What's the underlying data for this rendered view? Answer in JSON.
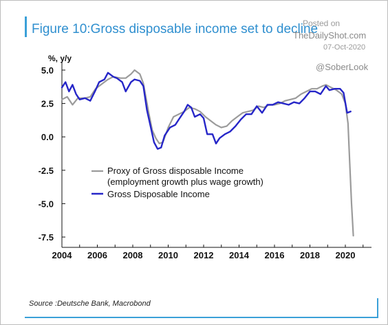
{
  "title": "Figure 10:Gross disposable income set to decline",
  "watermark": {
    "posted": "Posted on",
    "site": "TheDailyShot.com",
    "date": "07-Oct-2020",
    "handle": "@SoberLook"
  },
  "source": "Source :Deutsche Bank, Macrobond",
  "colors": {
    "accent": "#3aa0d8",
    "proxy_series": "#9b9b9b",
    "income_series": "#2626c8"
  },
  "chart_data": {
    "type": "line",
    "ylabel": "%, y/y",
    "xlim": [
      2004,
      2021
    ],
    "ylim": [
      -7.5,
      5.5
    ],
    "xticks": [
      2004,
      2006,
      2008,
      2010,
      2012,
      2014,
      2016,
      2018,
      2020
    ],
    "yticks": [
      5.0,
      2.5,
      0.0,
      -2.5,
      -5.0,
      -7.5
    ],
    "ytick_labels": [
      "5.0",
      "2.5",
      "0.0",
      "-2.5",
      "-5.0",
      "-7.5"
    ],
    "legend_position": "lower-left",
    "grid": false,
    "series": [
      {
        "name": "Proxy of Gross disposable Income",
        "name_line2": "(employment growth plus wage growth)",
        "color": "#9b9b9b",
        "points": [
          [
            2004.0,
            2.8
          ],
          [
            2004.3,
            3.0
          ],
          [
            2004.6,
            2.4
          ],
          [
            2004.9,
            2.9
          ],
          [
            2005.3,
            2.9
          ],
          [
            2005.6,
            3.0
          ],
          [
            2005.9,
            3.6
          ],
          [
            2006.3,
            4.0
          ],
          [
            2006.6,
            4.3
          ],
          [
            2006.9,
            4.5
          ],
          [
            2007.3,
            4.4
          ],
          [
            2007.6,
            4.4
          ],
          [
            2007.9,
            4.7
          ],
          [
            2008.1,
            5.0
          ],
          [
            2008.4,
            4.7
          ],
          [
            2008.6,
            4.0
          ],
          [
            2008.9,
            1.8
          ],
          [
            2009.1,
            0.5
          ],
          [
            2009.3,
            -0.1
          ],
          [
            2009.5,
            -0.5
          ],
          [
            2009.7,
            -0.4
          ],
          [
            2010.0,
            0.7
          ],
          [
            2010.3,
            1.5
          ],
          [
            2010.6,
            1.7
          ],
          [
            2010.9,
            1.9
          ],
          [
            2011.2,
            2.2
          ],
          [
            2011.5,
            2.1
          ],
          [
            2011.8,
            1.9
          ],
          [
            2012.1,
            1.5
          ],
          [
            2012.4,
            1.2
          ],
          [
            2012.7,
            0.9
          ],
          [
            2013.0,
            0.7
          ],
          [
            2013.3,
            0.8
          ],
          [
            2013.6,
            1.2
          ],
          [
            2013.9,
            1.5
          ],
          [
            2014.2,
            1.8
          ],
          [
            2014.5,
            1.9
          ],
          [
            2014.8,
            2.0
          ],
          [
            2015.1,
            2.3
          ],
          [
            2015.4,
            2.2
          ],
          [
            2015.7,
            2.4
          ],
          [
            2016.0,
            2.4
          ],
          [
            2016.3,
            2.5
          ],
          [
            2016.6,
            2.7
          ],
          [
            2016.9,
            2.8
          ],
          [
            2017.2,
            2.9
          ],
          [
            2017.5,
            3.2
          ],
          [
            2017.8,
            3.4
          ],
          [
            2018.1,
            3.6
          ],
          [
            2018.4,
            3.6
          ],
          [
            2018.7,
            3.8
          ],
          [
            2018.9,
            3.9
          ],
          [
            2019.2,
            3.7
          ],
          [
            2019.5,
            3.5
          ],
          [
            2019.8,
            3.2
          ],
          [
            2020.0,
            2.5
          ],
          [
            2020.15,
            1.0
          ],
          [
            2020.25,
            -2.0
          ],
          [
            2020.35,
            -5.0
          ],
          [
            2020.45,
            -7.4
          ]
        ]
      },
      {
        "name": "Gross Disposable Income",
        "color": "#2626c8",
        "points": [
          [
            2004.0,
            3.7
          ],
          [
            2004.2,
            4.1
          ],
          [
            2004.4,
            3.4
          ],
          [
            2004.6,
            3.9
          ],
          [
            2004.8,
            3.2
          ],
          [
            2005.0,
            2.8
          ],
          [
            2005.3,
            2.9
          ],
          [
            2005.6,
            2.7
          ],
          [
            2005.9,
            3.5
          ],
          [
            2006.1,
            4.1
          ],
          [
            2006.4,
            4.3
          ],
          [
            2006.6,
            4.8
          ],
          [
            2006.9,
            4.5
          ],
          [
            2007.1,
            4.4
          ],
          [
            2007.4,
            4.1
          ],
          [
            2007.6,
            3.4
          ],
          [
            2007.9,
            4.1
          ],
          [
            2008.1,
            4.3
          ],
          [
            2008.4,
            4.2
          ],
          [
            2008.6,
            3.8
          ],
          [
            2008.8,
            2.0
          ],
          [
            2009.0,
            0.8
          ],
          [
            2009.2,
            -0.4
          ],
          [
            2009.4,
            -0.9
          ],
          [
            2009.6,
            -0.8
          ],
          [
            2009.8,
            0.1
          ],
          [
            2010.1,
            0.7
          ],
          [
            2010.4,
            0.9
          ],
          [
            2010.6,
            1.3
          ],
          [
            2010.9,
            1.9
          ],
          [
            2011.1,
            2.4
          ],
          [
            2011.3,
            2.2
          ],
          [
            2011.5,
            1.5
          ],
          [
            2011.8,
            1.7
          ],
          [
            2012.0,
            1.4
          ],
          [
            2012.2,
            0.2
          ],
          [
            2012.5,
            0.2
          ],
          [
            2012.7,
            -0.5
          ],
          [
            2012.9,
            -0.1
          ],
          [
            2013.2,
            0.2
          ],
          [
            2013.5,
            0.4
          ],
          [
            2013.8,
            0.8
          ],
          [
            2014.1,
            1.3
          ],
          [
            2014.4,
            1.7
          ],
          [
            2014.7,
            1.7
          ],
          [
            2015.0,
            2.3
          ],
          [
            2015.3,
            1.8
          ],
          [
            2015.6,
            2.4
          ],
          [
            2015.9,
            2.4
          ],
          [
            2016.2,
            2.6
          ],
          [
            2016.5,
            2.5
          ],
          [
            2016.8,
            2.4
          ],
          [
            2017.1,
            2.6
          ],
          [
            2017.4,
            2.5
          ],
          [
            2017.7,
            2.9
          ],
          [
            2018.0,
            3.4
          ],
          [
            2018.3,
            3.4
          ],
          [
            2018.6,
            3.2
          ],
          [
            2018.9,
            3.8
          ],
          [
            2019.1,
            3.5
          ],
          [
            2019.4,
            3.6
          ],
          [
            2019.7,
            3.6
          ],
          [
            2019.9,
            3.3
          ],
          [
            2020.1,
            1.8
          ],
          [
            2020.3,
            1.9
          ]
        ]
      }
    ]
  }
}
